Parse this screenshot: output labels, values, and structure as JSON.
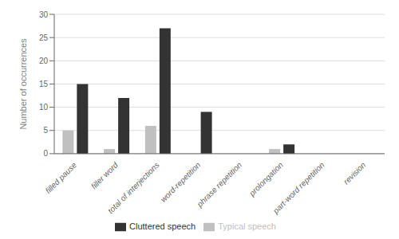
{
  "chart_data": {
    "type": "bar",
    "ylabel": "Number of occurrences",
    "categories": [
      "filled pause",
      "filler word",
      "total of interjections",
      "word-repetition",
      "phrase repetition",
      "prolongation",
      "part-word repetition",
      "revision"
    ],
    "series": [
      {
        "name": "Typical speech",
        "color": "#c0c0c0",
        "values": [
          5,
          1,
          6,
          0,
          0,
          1,
          0,
          0
        ]
      },
      {
        "name": "Cluttered speech",
        "color": "#333333",
        "values": [
          15,
          12,
          27,
          9,
          0,
          2,
          0,
          0
        ]
      }
    ],
    "ylim": [
      0,
      30
    ],
    "yticks": [
      0,
      5,
      10,
      15,
      20,
      25,
      30
    ],
    "grid": true,
    "legend": "bottom"
  }
}
